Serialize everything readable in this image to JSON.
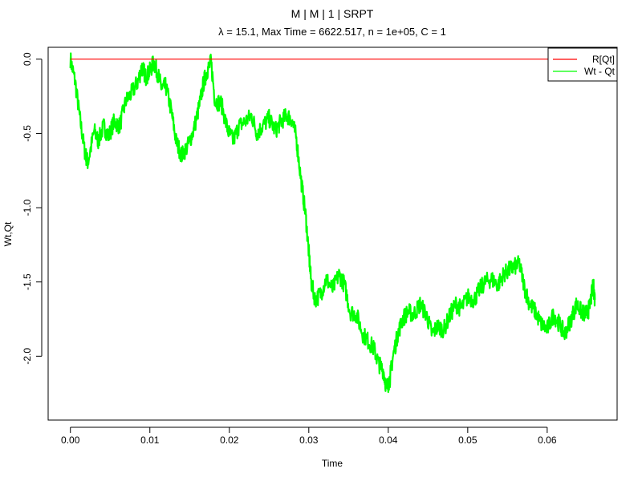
{
  "chart_data": {
    "type": "line",
    "title": "M | M | 1 | SRPT",
    "subtitle": "λ = 15.1, Max Time = 6622.517, n = 1e+05, C = 1",
    "xlabel": "Time",
    "ylabel": "Wt,Qt",
    "xlim": [
      -0.0028,
      0.0688
    ],
    "ylim": [
      -2.43,
      0.08
    ],
    "xticks": [
      0.0,
      0.01,
      0.02,
      0.03,
      0.04,
      0.05,
      0.06
    ],
    "xtick_labels": [
      "0.00",
      "0.01",
      "0.02",
      "0.03",
      "0.04",
      "0.05",
      "0.06"
    ],
    "yticks": [
      0.0,
      -0.5,
      -1.0,
      -1.5,
      -2.0
    ],
    "ytick_labels": [
      "0.0",
      "-0.5",
      "-1.0",
      "-1.5",
      "-2.0"
    ],
    "legend_position": "top-right",
    "grid": false,
    "series": [
      {
        "name": "R[Qt]",
        "color": "#ff0000",
        "x": [
          0.0,
          0.066
        ],
        "y": [
          0.0,
          0.0
        ]
      },
      {
        "name": "Wt - Qt",
        "color": "#00ff00",
        "noise": 0.06,
        "x": [
          0.0,
          0.0006,
          0.0012,
          0.0018,
          0.0022,
          0.003,
          0.0035,
          0.0042,
          0.0048,
          0.0055,
          0.0062,
          0.007,
          0.0078,
          0.0085,
          0.009,
          0.0095,
          0.01,
          0.0105,
          0.011,
          0.0115,
          0.012,
          0.0127,
          0.0133,
          0.014,
          0.0148,
          0.0155,
          0.0162,
          0.0168,
          0.0172,
          0.0177,
          0.0182,
          0.019,
          0.0198,
          0.0205,
          0.0212,
          0.022,
          0.0228,
          0.0235,
          0.0242,
          0.025,
          0.0258,
          0.0265,
          0.0272,
          0.0278,
          0.0284,
          0.029,
          0.0296,
          0.03,
          0.0303,
          0.0308,
          0.0315,
          0.0322,
          0.033,
          0.0338,
          0.0345,
          0.0352,
          0.036,
          0.0368,
          0.0375,
          0.0382,
          0.0388,
          0.0394,
          0.0398,
          0.0402,
          0.0406,
          0.0412,
          0.0418,
          0.0425,
          0.0432,
          0.044,
          0.0448,
          0.0455,
          0.0462,
          0.047,
          0.0478,
          0.0485,
          0.0492,
          0.05,
          0.0508,
          0.0515,
          0.0522,
          0.053,
          0.0538,
          0.0545,
          0.0552,
          0.0558,
          0.0565,
          0.0572,
          0.0578,
          0.0585,
          0.0592,
          0.06,
          0.0608,
          0.0615,
          0.0622,
          0.063,
          0.0637,
          0.0643,
          0.0648,
          0.0653,
          0.0658,
          0.066
        ],
        "y": [
          0.0,
          -0.15,
          -0.4,
          -0.62,
          -0.7,
          -0.48,
          -0.55,
          -0.45,
          -0.52,
          -0.42,
          -0.45,
          -0.28,
          -0.22,
          -0.15,
          -0.05,
          -0.12,
          -0.08,
          -0.02,
          -0.1,
          -0.2,
          -0.18,
          -0.35,
          -0.55,
          -0.65,
          -0.58,
          -0.48,
          -0.32,
          -0.15,
          -0.08,
          -0.02,
          -0.28,
          -0.3,
          -0.48,
          -0.55,
          -0.45,
          -0.42,
          -0.38,
          -0.5,
          -0.45,
          -0.4,
          -0.48,
          -0.42,
          -0.38,
          -0.4,
          -0.52,
          -0.8,
          -1.05,
          -1.3,
          -1.5,
          -1.62,
          -1.58,
          -1.48,
          -1.55,
          -1.45,
          -1.52,
          -1.7,
          -1.72,
          -1.85,
          -1.9,
          -1.95,
          -2.05,
          -2.1,
          -2.22,
          -2.15,
          -2.0,
          -1.85,
          -1.75,
          -1.7,
          -1.72,
          -1.65,
          -1.72,
          -1.85,
          -1.8,
          -1.82,
          -1.72,
          -1.65,
          -1.68,
          -1.6,
          -1.62,
          -1.55,
          -1.5,
          -1.48,
          -1.52,
          -1.45,
          -1.42,
          -1.4,
          -1.38,
          -1.55,
          -1.65,
          -1.7,
          -1.78,
          -1.82,
          -1.72,
          -1.78,
          -1.85,
          -1.75,
          -1.65,
          -1.7,
          -1.72,
          -1.68,
          -1.52,
          -1.62
        ]
      }
    ]
  }
}
